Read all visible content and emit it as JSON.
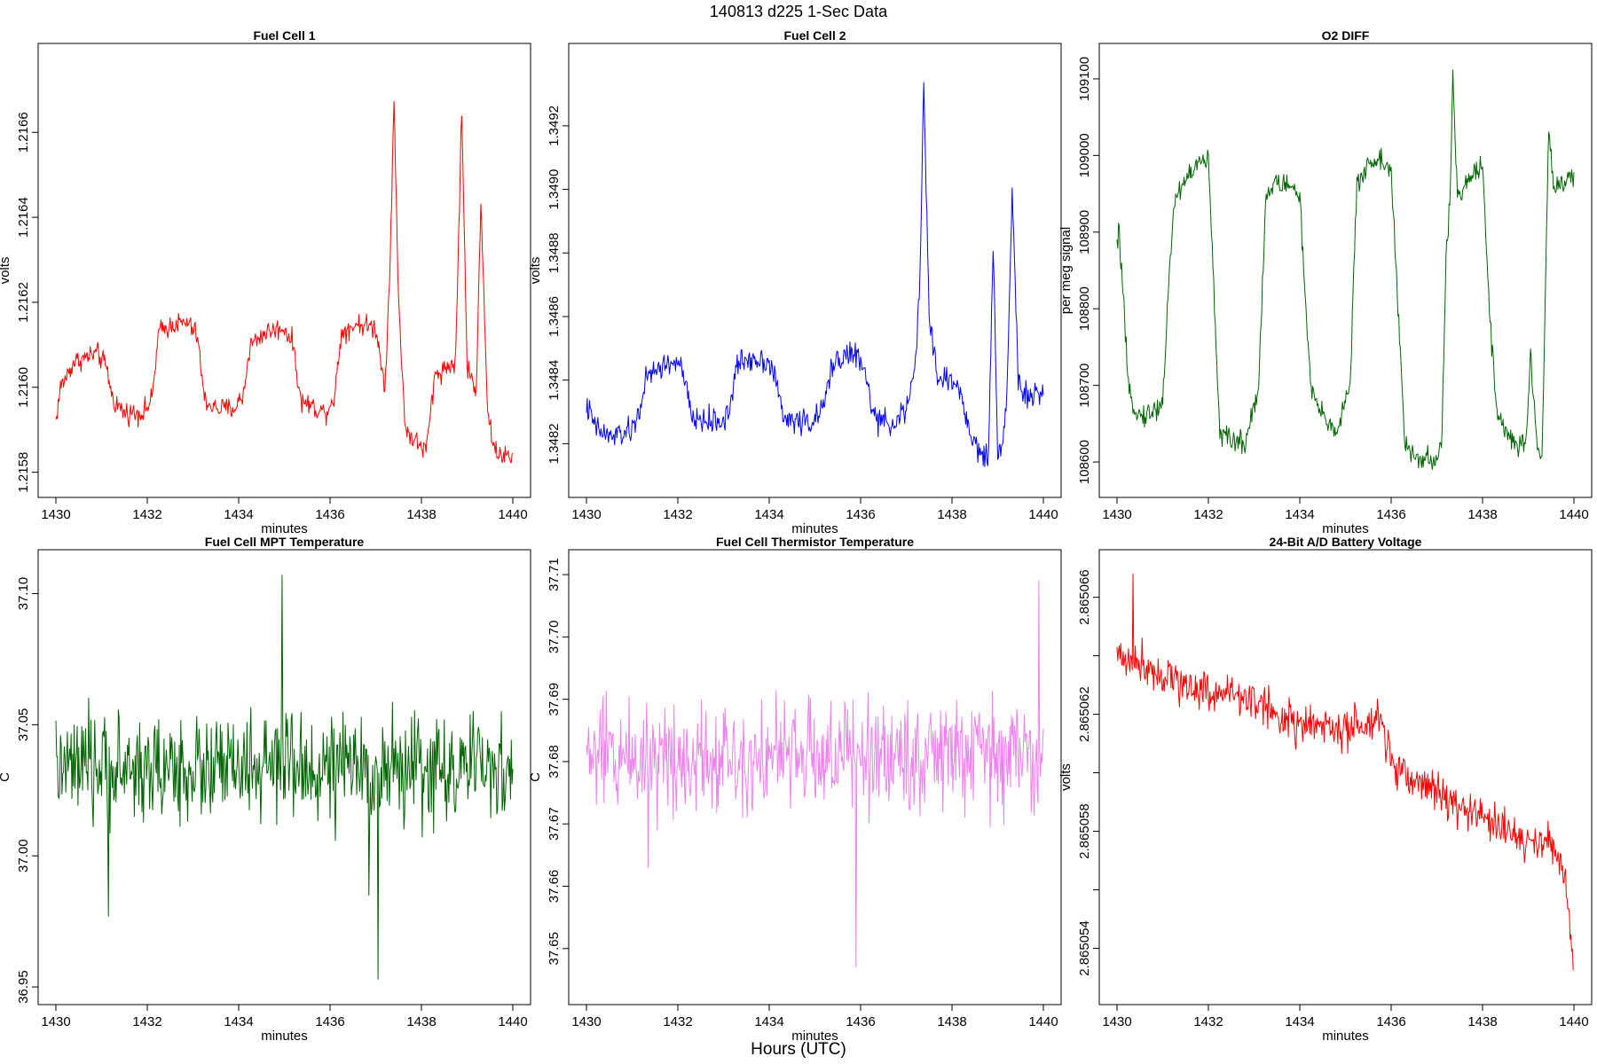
{
  "figure": {
    "title": "140813   d225   1-Sec Data",
    "xlabel": "Hours (UTC)"
  },
  "chart_data": [
    {
      "type": "line",
      "title": "Fuel Cell 1",
      "xlabel": "minutes",
      "ylabel": "volts",
      "color": "#ff0000",
      "xlim": [
        1430,
        1440
      ],
      "ylim": [
        1.21577,
        1.21678
      ],
      "xticks": [
        1430,
        1432,
        1434,
        1436,
        1438,
        1440
      ],
      "xtick_labels": [
        "1430",
        "1432",
        "1434",
        "1436",
        "1438",
        "1440"
      ],
      "yticks": [
        1.2158,
        1.216,
        1.2162,
        1.2164,
        1.2166
      ],
      "ytick_labels": [
        "1.2158",
        "1.2160",
        "1.2162",
        "1.2164",
        "1.2166"
      ],
      "noise": 2.5e-05,
      "series": [
        {
          "name": "Fuel Cell 1",
          "x": [
            1430.0,
            1430.1,
            1430.4,
            1430.9,
            1431.1,
            1431.25,
            1431.5,
            1431.9,
            1432.1,
            1432.25,
            1432.6,
            1432.9,
            1433.1,
            1433.25,
            1433.5,
            1433.9,
            1434.1,
            1434.25,
            1434.6,
            1435.0,
            1435.2,
            1435.35,
            1435.7,
            1435.9,
            1436.1,
            1436.25,
            1436.6,
            1437.0,
            1437.2,
            1437.3,
            1437.4,
            1437.5,
            1437.65,
            1437.9,
            1438.1,
            1438.3,
            1438.6,
            1438.75,
            1438.88,
            1439.0,
            1439.1,
            1439.2,
            1439.3,
            1439.45,
            1439.6,
            1440.0
          ],
          "values": [
            1.21592,
            1.216,
            1.21606,
            1.21608,
            1.21605,
            1.21597,
            1.21594,
            1.21594,
            1.21597,
            1.21613,
            1.21615,
            1.21615,
            1.21612,
            1.21597,
            1.21595,
            1.21595,
            1.21598,
            1.2161,
            1.21613,
            1.21614,
            1.2161,
            1.21597,
            1.21595,
            1.21594,
            1.21598,
            1.21613,
            1.21615,
            1.21614,
            1.216,
            1.21625,
            1.21667,
            1.2162,
            1.2159,
            1.21587,
            1.21585,
            1.21603,
            1.21605,
            1.21606,
            1.21666,
            1.21605,
            1.21602,
            1.21598,
            1.21645,
            1.21594,
            1.21585,
            1.21583
          ]
        }
      ]
    },
    {
      "type": "line",
      "title": "Fuel Cell 2",
      "xlabel": "minutes",
      "ylabel": "volts",
      "color": "#0000ff",
      "xlim": [
        1430,
        1440
      ],
      "ylim": [
        1.34807,
        1.34942
      ],
      "xticks": [
        1430,
        1432,
        1434,
        1436,
        1438,
        1440
      ],
      "xtick_labels": [
        "1430",
        "1432",
        "1434",
        "1436",
        "1438",
        "1440"
      ],
      "yticks": [
        1.3482,
        1.3484,
        1.3486,
        1.3488,
        1.349,
        1.3492
      ],
      "ytick_labels": [
        "1.3482",
        "1.3484",
        "1.3486",
        "1.3488",
        "1.3490",
        "1.3492"
      ],
      "noise": 4e-05,
      "series": [
        {
          "name": "Fuel Cell 2",
          "x": [
            1430.0,
            1430.2,
            1430.5,
            1431.0,
            1431.15,
            1431.3,
            1431.6,
            1432.0,
            1432.15,
            1432.3,
            1432.7,
            1433.0,
            1433.15,
            1433.3,
            1433.6,
            1434.0,
            1434.15,
            1434.3,
            1434.7,
            1435.0,
            1435.2,
            1435.4,
            1435.7,
            1435.9,
            1436.1,
            1436.3,
            1436.6,
            1437.0,
            1437.2,
            1437.3,
            1437.38,
            1437.5,
            1437.7,
            1438.0,
            1438.2,
            1438.4,
            1438.6,
            1438.8,
            1438.9,
            1439.0,
            1439.1,
            1439.2,
            1439.32,
            1439.45,
            1439.6,
            1440.0
          ],
          "values": [
            1.34832,
            1.34825,
            1.34822,
            1.34824,
            1.3483,
            1.3484,
            1.34844,
            1.34846,
            1.3484,
            1.34828,
            1.34827,
            1.34827,
            1.34832,
            1.34845,
            1.34847,
            1.34846,
            1.3484,
            1.34828,
            1.34827,
            1.34827,
            1.34832,
            1.34846,
            1.34848,
            1.34848,
            1.34842,
            1.34828,
            1.34826,
            1.3483,
            1.34845,
            1.3487,
            1.34935,
            1.3486,
            1.3484,
            1.3484,
            1.34836,
            1.34822,
            1.34818,
            1.34815,
            1.34885,
            1.34815,
            1.34822,
            1.34835,
            1.349,
            1.3484,
            1.34835,
            1.34835
          ]
        }
      ]
    },
    {
      "type": "line",
      "title": "O2 DIFF",
      "xlabel": "minutes",
      "ylabel": "per meg signal",
      "color": "#006400",
      "xlim": [
        1430,
        1440
      ],
      "ylim": [
        108570,
        109130
      ],
      "xticks": [
        1430,
        1432,
        1434,
        1436,
        1438,
        1440
      ],
      "xtick_labels": [
        "1430",
        "1432",
        "1434",
        "1436",
        "1438",
        "1440"
      ],
      "yticks": [
        108600,
        108700,
        108800,
        108900,
        109000,
        109100
      ],
      "ytick_labels": [
        "108600",
        "108700",
        "108800",
        "108900",
        "109000",
        "109100"
      ],
      "noise": 15,
      "series": [
        {
          "name": "O2 DIFF",
          "x": [
            1430.0,
            1430.05,
            1430.15,
            1430.25,
            1430.5,
            1430.8,
            1431.0,
            1431.15,
            1431.25,
            1431.5,
            1431.8,
            1432.0,
            1432.1,
            1432.25,
            1432.4,
            1432.8,
            1433.1,
            1433.25,
            1433.45,
            1433.8,
            1434.0,
            1434.1,
            1434.25,
            1434.5,
            1434.8,
            1435.1,
            1435.25,
            1435.5,
            1435.8,
            1436.0,
            1436.15,
            1436.3,
            1436.6,
            1437.0,
            1437.1,
            1437.2,
            1437.3,
            1437.35,
            1437.45,
            1437.8,
            1438.0,
            1438.15,
            1438.3,
            1438.6,
            1438.8,
            1438.95,
            1439.05,
            1439.2,
            1439.3,
            1439.4,
            1439.45,
            1439.55,
            1440.0
          ],
          "values": [
            108880,
            108900,
            108800,
            108690,
            108660,
            108665,
            108680,
            108850,
            108940,
            108970,
            108990,
            108995,
            108850,
            108640,
            108630,
            108625,
            108700,
            108940,
            108965,
            108960,
            108950,
            108830,
            108690,
            108660,
            108640,
            108700,
            108960,
            108990,
            108995,
            108980,
            108800,
            108620,
            108605,
            108600,
            108620,
            108860,
            108960,
            109110,
            108940,
            108980,
            108990,
            108800,
            108670,
            108630,
            108620,
            108620,
            108740,
            108620,
            108600,
            108900,
            109040,
            108960,
            108970
          ]
        }
      ]
    },
    {
      "type": "line",
      "title": "Fuel Cell MPT Temperature",
      "xlabel": "minutes",
      "ylabel": "C",
      "color": "#006400",
      "xlim": [
        1430,
        1440
      ],
      "ylim": [
        36.948,
        37.112
      ],
      "xticks": [
        1430,
        1432,
        1434,
        1436,
        1438,
        1440
      ],
      "xtick_labels": [
        "1430",
        "1432",
        "1434",
        "1436",
        "1438",
        "1440"
      ],
      "yticks": [
        36.95,
        37.0,
        37.05,
        37.1
      ],
      "ytick_labels": [
        "36.95",
        "37.00",
        "37.05",
        "37.10"
      ],
      "noise": 0.02,
      "spikes": [
        [
          1431.15,
          36.977
        ],
        [
          1434.95,
          37.107
        ],
        [
          1437.05,
          36.953
        ],
        [
          1436.85,
          36.985
        ]
      ],
      "series": [
        {
          "name": "MPT Temperature",
          "x": [
            1430,
            1440
          ],
          "values": [
            37.033,
            37.033
          ]
        }
      ]
    },
    {
      "type": "line",
      "title": "Fuel Cell Thermistor Temperature",
      "xlabel": "minutes",
      "ylabel": "C",
      "color": "#ee82ee",
      "xlim": [
        1430,
        1440
      ],
      "ylim": [
        37.643,
        37.712
      ],
      "xticks": [
        1430,
        1432,
        1434,
        1436,
        1438,
        1440
      ],
      "xtick_labels": [
        "1430",
        "1432",
        "1434",
        "1436",
        "1438",
        "1440"
      ],
      "yticks": [
        37.65,
        37.66,
        37.67,
        37.68,
        37.69,
        37.7,
        37.71
      ],
      "ytick_labels": [
        "37.65",
        "37.66",
        "37.67",
        "37.68",
        "37.69",
        "37.70",
        "37.71"
      ],
      "noise": 0.009,
      "spikes": [
        [
          1435.9,
          37.647
        ],
        [
          1431.35,
          37.663
        ],
        [
          1439.9,
          37.709
        ]
      ],
      "series": [
        {
          "name": "Thermistor Temperature",
          "x": [
            1430,
            1440
          ],
          "values": [
            37.681,
            37.681
          ]
        }
      ]
    },
    {
      "type": "line",
      "title": "24-Bit A/D Battery Voltage",
      "xlabel": "minutes",
      "ylabel": "volts",
      "color": "#ff0000",
      "xlim": [
        1430,
        1440
      ],
      "ylim": [
        2.8650525,
        2.8650672
      ],
      "xticks": [
        1430,
        1432,
        1434,
        1436,
        1438,
        1440
      ],
      "xtick_labels": [
        "1430",
        "1432",
        "1434",
        "1436",
        "1438",
        "1440"
      ],
      "yticks": [
        2.865054,
        2.865056,
        2.865058,
        2.86506,
        2.865062,
        2.865064,
        2.865066
      ],
      "ytick_labels": [
        "2.865054",
        "",
        "2.865058",
        "",
        "2.865062",
        "",
        "2.865066"
      ],
      "noise": 7e-07,
      "spikes": [
        [
          1430.35,
          2.8650668
        ]
      ],
      "series": [
        {
          "name": "Battery Voltage",
          "x": [
            1430.0,
            1430.5,
            1431.0,
            1431.5,
            1432.0,
            1432.5,
            1433.0,
            1433.5,
            1434.0,
            1434.5,
            1435.0,
            1435.5,
            1435.8,
            1436.1,
            1436.5,
            1437.0,
            1437.5,
            1438.0,
            1438.5,
            1439.0,
            1439.5,
            1439.8,
            1440.0
          ],
          "values": [
            2.865064,
            2.8650638,
            2.8650634,
            2.865063,
            2.8650628,
            2.8650627,
            2.8650625,
            2.865062,
            2.8650616,
            2.8650616,
            2.8650614,
            2.8650616,
            2.8650616,
            2.86506,
            2.8650598,
            2.8650594,
            2.8650588,
            2.8650585,
            2.865058,
            2.8650577,
            2.8650575,
            2.8650567,
            2.8650533
          ]
        }
      ]
    }
  ]
}
